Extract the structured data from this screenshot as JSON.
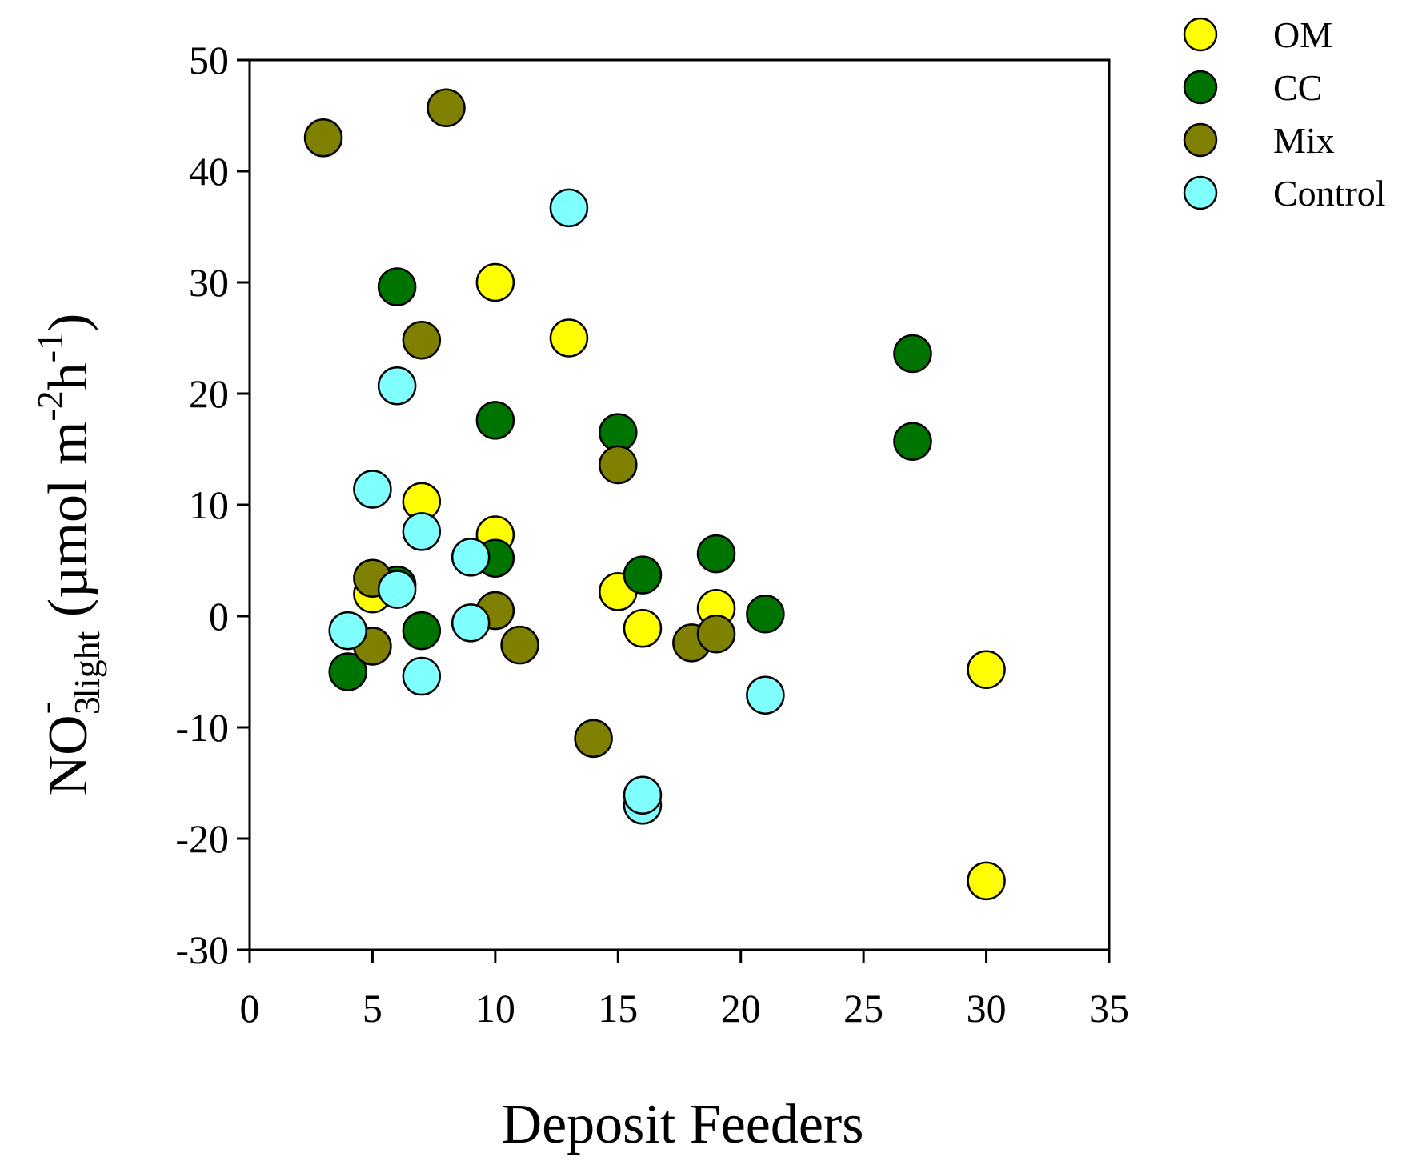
{
  "chart_data": {
    "type": "scatter",
    "xlabel": "Deposit Feeders",
    "ylabel": {
      "main": "NO",
      "sub1": "3",
      "sup1": "-",
      "sub2": "light",
      "unit_start": " (µmol  m",
      "sup2": "-2",
      "unit_mid": "h",
      "sup3": "-1",
      "unit_end": ")"
    },
    "xlim": [
      0,
      35
    ],
    "ylim": [
      -30,
      50
    ],
    "xticks": [
      0,
      5,
      10,
      15,
      20,
      25,
      30,
      35
    ],
    "yticks": [
      -30,
      -20,
      -10,
      0,
      10,
      20,
      30,
      40,
      50
    ],
    "grid": false,
    "legend_position": "top-right outside",
    "series": [
      {
        "name": "OM",
        "color": "#ffff00",
        "points": [
          {
            "x": 5,
            "y": 2
          },
          {
            "x": 7,
            "y": 10.3
          },
          {
            "x": 10,
            "y": 30
          },
          {
            "x": 10,
            "y": 7.3
          },
          {
            "x": 13,
            "y": 25
          },
          {
            "x": 15,
            "y": 2.2
          },
          {
            "x": 16,
            "y": -1.1
          },
          {
            "x": 19,
            "y": 0.7
          },
          {
            "x": 30,
            "y": -4.8
          },
          {
            "x": 30,
            "y": -23.8
          }
        ]
      },
      {
        "name": "CC",
        "color": "#007400",
        "points": [
          {
            "x": 4,
            "y": -5
          },
          {
            "x": 6,
            "y": 29.6
          },
          {
            "x": 6,
            "y": 2.8
          },
          {
            "x": 7,
            "y": -1.3
          },
          {
            "x": 10,
            "y": 17.6
          },
          {
            "x": 10,
            "y": 5.2
          },
          {
            "x": 15,
            "y": 16.5
          },
          {
            "x": 16,
            "y": 3.7
          },
          {
            "x": 19,
            "y": 5.6
          },
          {
            "x": 21,
            "y": 0.2
          },
          {
            "x": 27,
            "y": 23.6
          },
          {
            "x": 27,
            "y": 15.7
          }
        ]
      },
      {
        "name": "Mix",
        "color": "#808000",
        "points": [
          {
            "x": 3,
            "y": 43
          },
          {
            "x": 8,
            "y": 45.7
          },
          {
            "x": 7,
            "y": 24.8
          },
          {
            "x": 5,
            "y": 3.4
          },
          {
            "x": 5,
            "y": -2.7
          },
          {
            "x": 10,
            "y": 0.5
          },
          {
            "x": 11,
            "y": -2.6
          },
          {
            "x": 15,
            "y": 13.6
          },
          {
            "x": 14,
            "y": -11
          },
          {
            "x": 18,
            "y": -2.4
          },
          {
            "x": 19,
            "y": -1.6
          }
        ]
      },
      {
        "name": "Control",
        "color": "#80ffff",
        "points": [
          {
            "x": 13,
            "y": 36.7
          },
          {
            "x": 6,
            "y": 20.7
          },
          {
            "x": 5,
            "y": 11.4
          },
          {
            "x": 7,
            "y": 7.6
          },
          {
            "x": 9,
            "y": 5.3
          },
          {
            "x": 6,
            "y": 2.4
          },
          {
            "x": 4,
            "y": -1.3
          },
          {
            "x": 9,
            "y": -0.6
          },
          {
            "x": 7,
            "y": -5.4
          },
          {
            "x": 21,
            "y": -7.1
          },
          {
            "x": 16,
            "y": -17
          },
          {
            "x": 16,
            "y": -16.1
          }
        ]
      }
    ]
  }
}
